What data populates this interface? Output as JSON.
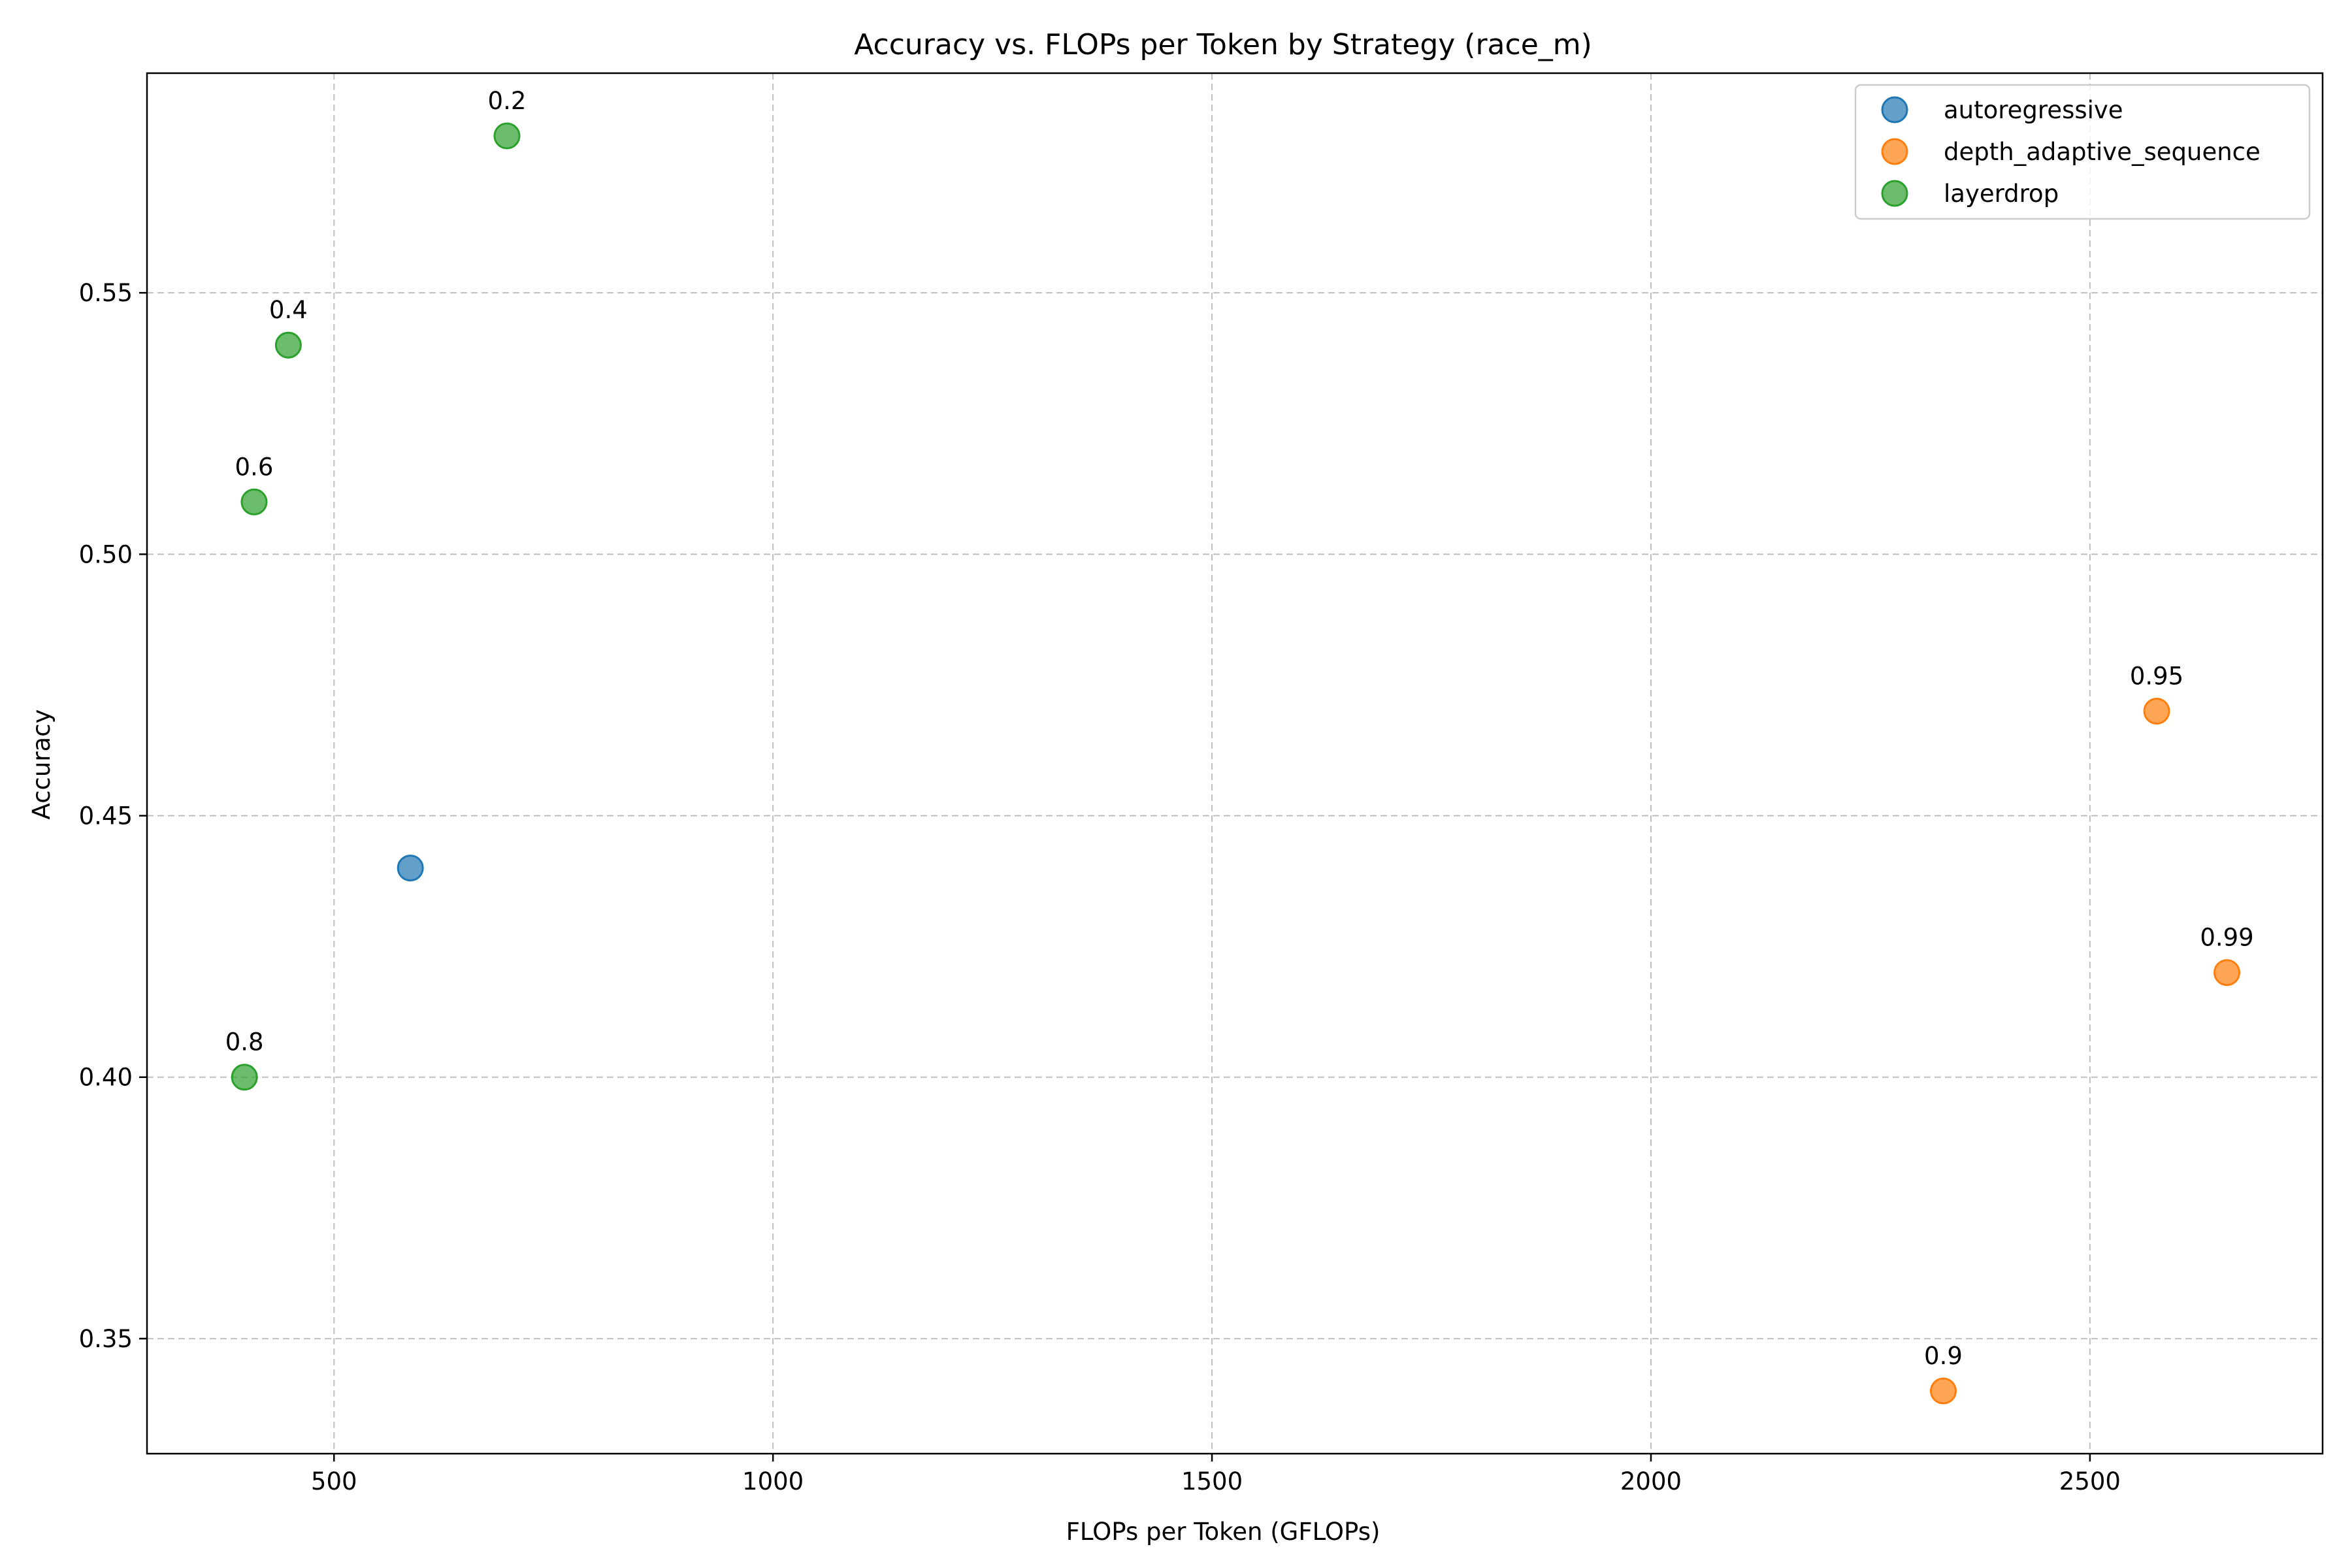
{
  "chart_data": {
    "type": "scatter",
    "title": "Accuracy vs. FLOPs per Token by Strategy (race_m)",
    "xlabel": "FLOPs per Token (GFLOPs)",
    "ylabel": "Accuracy",
    "xlim": [
      287,
      2765
    ],
    "ylim": [
      0.328,
      0.592
    ],
    "xticks": [
      500,
      1000,
      1500,
      2000,
      2500
    ],
    "xtick_labels": [
      "500",
      "1000",
      "1500",
      "2000",
      "2500"
    ],
    "yticks": [
      0.35,
      0.4,
      0.45,
      0.5,
      0.55
    ],
    "ytick_labels": [
      "0.35",
      "0.40",
      "0.45",
      "0.50",
      "0.55"
    ],
    "grid": true,
    "legend_position": "top-right",
    "series": [
      {
        "name": "autoregressive",
        "color": "#1f77b4",
        "points": [
          {
            "x": 587,
            "y": 0.44,
            "label": ""
          }
        ]
      },
      {
        "name": "depth_adaptive_sequence",
        "color": "#ff7f0e",
        "points": [
          {
            "x": 2333,
            "y": 0.34,
            "label": "0.9"
          },
          {
            "x": 2576,
            "y": 0.47,
            "label": "0.95"
          },
          {
            "x": 2656,
            "y": 0.42,
            "label": "0.99"
          }
        ]
      },
      {
        "name": "layerdrop",
        "color": "#2ca02c",
        "points": [
          {
            "x": 697,
            "y": 0.58,
            "label": "0.2"
          },
          {
            "x": 448,
            "y": 0.54,
            "label": "0.4"
          },
          {
            "x": 409,
            "y": 0.51,
            "label": "0.6"
          },
          {
            "x": 398,
            "y": 0.4,
            "label": "0.8"
          }
        ]
      }
    ]
  }
}
